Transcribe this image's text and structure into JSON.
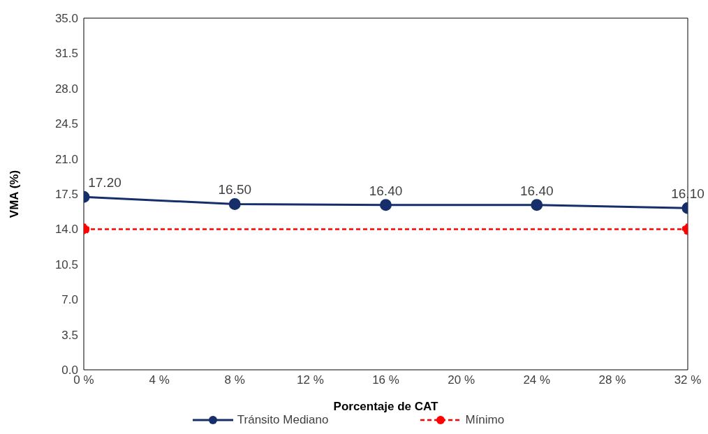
{
  "chart_data": {
    "type": "line",
    "xlabel": "Porcentaje de CAT",
    "ylabel": "VMA (%)",
    "x": [
      0,
      8,
      16,
      24,
      32
    ],
    "series": [
      {
        "name": "Tránsito Mediano",
        "color": "#162f6b",
        "values": [
          17.2,
          16.5,
          16.4,
          16.4,
          16.1
        ],
        "value_labels": [
          "17.20",
          "16.50",
          "16.40",
          "16.40",
          "16.10"
        ],
        "marker": "circle",
        "line_style": "solid"
      },
      {
        "name": "Mínimo",
        "color": "#ff0000",
        "x": [
          0,
          32
        ],
        "values": [
          14,
          14
        ],
        "marker": "circle",
        "line_style": "dashed"
      }
    ],
    "xlim": [
      0,
      32
    ],
    "xticks": [
      {
        "value": 0,
        "label": "0 %"
      },
      {
        "value": 4,
        "label": "4 %"
      },
      {
        "value": 8,
        "label": "8 %"
      },
      {
        "value": 12,
        "label": "12 %"
      },
      {
        "value": 16,
        "label": "16 %"
      },
      {
        "value": 20,
        "label": "20 %"
      },
      {
        "value": 24,
        "label": "24 %"
      },
      {
        "value": 28,
        "label": "28 %"
      },
      {
        "value": 32,
        "label": "32 %"
      }
    ],
    "ylim": [
      0,
      35
    ],
    "yticks": [
      {
        "value": 0,
        "label": "0.0"
      },
      {
        "value": 3.5,
        "label": "3.5"
      },
      {
        "value": 7,
        "label": "7.0"
      },
      {
        "value": 10.5,
        "label": "10.5"
      },
      {
        "value": 14,
        "label": "14.0"
      },
      {
        "value": 17.5,
        "label": "17.5"
      },
      {
        "value": 21,
        "label": "21.0"
      },
      {
        "value": 24.5,
        "label": "24.5"
      },
      {
        "value": 28,
        "label": "28.0"
      },
      {
        "value": 31.5,
        "label": "31.5"
      },
      {
        "value": 35,
        "label": "35.0"
      }
    ],
    "grid": false,
    "legend": "bottom"
  }
}
